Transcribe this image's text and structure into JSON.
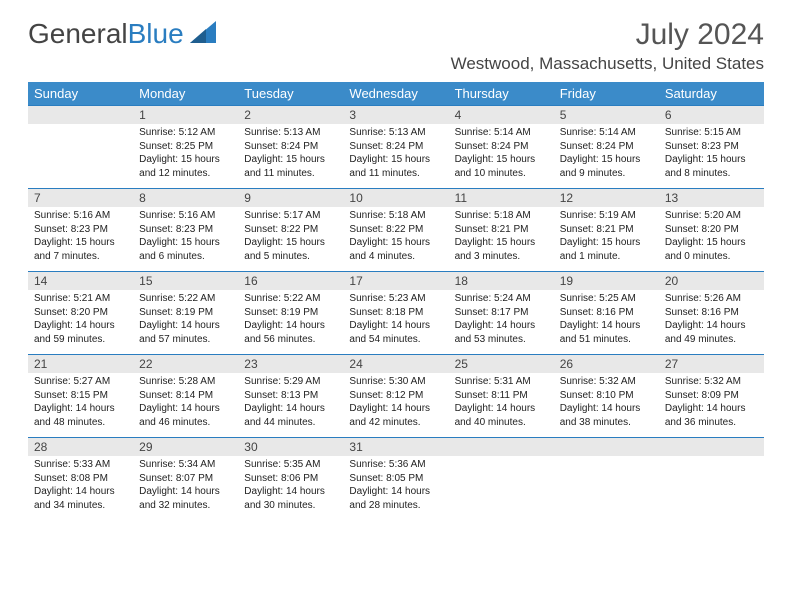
{
  "logo": {
    "text1": "General",
    "text2": "Blue"
  },
  "title": "July 2024",
  "location": "Westwood, Massachusetts, United States",
  "colors": {
    "header_bg": "#3b8bc9",
    "header_text": "#ffffff",
    "daynum_bg": "#e8e8e8",
    "border_top": "#2a7dc0",
    "body_text": "#222222",
    "page_bg": "#ffffff"
  },
  "dayNames": [
    "Sunday",
    "Monday",
    "Tuesday",
    "Wednesday",
    "Thursday",
    "Friday",
    "Saturday"
  ],
  "weeks": [
    {
      "nums": [
        "",
        "1",
        "2",
        "3",
        "4",
        "5",
        "6"
      ],
      "cells": [
        {
          "sunrise": "",
          "sunset": "",
          "daylight": ""
        },
        {
          "sunrise": "Sunrise: 5:12 AM",
          "sunset": "Sunset: 8:25 PM",
          "daylight": "Daylight: 15 hours and 12 minutes."
        },
        {
          "sunrise": "Sunrise: 5:13 AM",
          "sunset": "Sunset: 8:24 PM",
          "daylight": "Daylight: 15 hours and 11 minutes."
        },
        {
          "sunrise": "Sunrise: 5:13 AM",
          "sunset": "Sunset: 8:24 PM",
          "daylight": "Daylight: 15 hours and 11 minutes."
        },
        {
          "sunrise": "Sunrise: 5:14 AM",
          "sunset": "Sunset: 8:24 PM",
          "daylight": "Daylight: 15 hours and 10 minutes."
        },
        {
          "sunrise": "Sunrise: 5:14 AM",
          "sunset": "Sunset: 8:24 PM",
          "daylight": "Daylight: 15 hours and 9 minutes."
        },
        {
          "sunrise": "Sunrise: 5:15 AM",
          "sunset": "Sunset: 8:23 PM",
          "daylight": "Daylight: 15 hours and 8 minutes."
        }
      ]
    },
    {
      "nums": [
        "7",
        "8",
        "9",
        "10",
        "11",
        "12",
        "13"
      ],
      "cells": [
        {
          "sunrise": "Sunrise: 5:16 AM",
          "sunset": "Sunset: 8:23 PM",
          "daylight": "Daylight: 15 hours and 7 minutes."
        },
        {
          "sunrise": "Sunrise: 5:16 AM",
          "sunset": "Sunset: 8:23 PM",
          "daylight": "Daylight: 15 hours and 6 minutes."
        },
        {
          "sunrise": "Sunrise: 5:17 AM",
          "sunset": "Sunset: 8:22 PM",
          "daylight": "Daylight: 15 hours and 5 minutes."
        },
        {
          "sunrise": "Sunrise: 5:18 AM",
          "sunset": "Sunset: 8:22 PM",
          "daylight": "Daylight: 15 hours and 4 minutes."
        },
        {
          "sunrise": "Sunrise: 5:18 AM",
          "sunset": "Sunset: 8:21 PM",
          "daylight": "Daylight: 15 hours and 3 minutes."
        },
        {
          "sunrise": "Sunrise: 5:19 AM",
          "sunset": "Sunset: 8:21 PM",
          "daylight": "Daylight: 15 hours and 1 minute."
        },
        {
          "sunrise": "Sunrise: 5:20 AM",
          "sunset": "Sunset: 8:20 PM",
          "daylight": "Daylight: 15 hours and 0 minutes."
        }
      ]
    },
    {
      "nums": [
        "14",
        "15",
        "16",
        "17",
        "18",
        "19",
        "20"
      ],
      "cells": [
        {
          "sunrise": "Sunrise: 5:21 AM",
          "sunset": "Sunset: 8:20 PM",
          "daylight": "Daylight: 14 hours and 59 minutes."
        },
        {
          "sunrise": "Sunrise: 5:22 AM",
          "sunset": "Sunset: 8:19 PM",
          "daylight": "Daylight: 14 hours and 57 minutes."
        },
        {
          "sunrise": "Sunrise: 5:22 AM",
          "sunset": "Sunset: 8:19 PM",
          "daylight": "Daylight: 14 hours and 56 minutes."
        },
        {
          "sunrise": "Sunrise: 5:23 AM",
          "sunset": "Sunset: 8:18 PM",
          "daylight": "Daylight: 14 hours and 54 minutes."
        },
        {
          "sunrise": "Sunrise: 5:24 AM",
          "sunset": "Sunset: 8:17 PM",
          "daylight": "Daylight: 14 hours and 53 minutes."
        },
        {
          "sunrise": "Sunrise: 5:25 AM",
          "sunset": "Sunset: 8:16 PM",
          "daylight": "Daylight: 14 hours and 51 minutes."
        },
        {
          "sunrise": "Sunrise: 5:26 AM",
          "sunset": "Sunset: 8:16 PM",
          "daylight": "Daylight: 14 hours and 49 minutes."
        }
      ]
    },
    {
      "nums": [
        "21",
        "22",
        "23",
        "24",
        "25",
        "26",
        "27"
      ],
      "cells": [
        {
          "sunrise": "Sunrise: 5:27 AM",
          "sunset": "Sunset: 8:15 PM",
          "daylight": "Daylight: 14 hours and 48 minutes."
        },
        {
          "sunrise": "Sunrise: 5:28 AM",
          "sunset": "Sunset: 8:14 PM",
          "daylight": "Daylight: 14 hours and 46 minutes."
        },
        {
          "sunrise": "Sunrise: 5:29 AM",
          "sunset": "Sunset: 8:13 PM",
          "daylight": "Daylight: 14 hours and 44 minutes."
        },
        {
          "sunrise": "Sunrise: 5:30 AM",
          "sunset": "Sunset: 8:12 PM",
          "daylight": "Daylight: 14 hours and 42 minutes."
        },
        {
          "sunrise": "Sunrise: 5:31 AM",
          "sunset": "Sunset: 8:11 PM",
          "daylight": "Daylight: 14 hours and 40 minutes."
        },
        {
          "sunrise": "Sunrise: 5:32 AM",
          "sunset": "Sunset: 8:10 PM",
          "daylight": "Daylight: 14 hours and 38 minutes."
        },
        {
          "sunrise": "Sunrise: 5:32 AM",
          "sunset": "Sunset: 8:09 PM",
          "daylight": "Daylight: 14 hours and 36 minutes."
        }
      ]
    },
    {
      "nums": [
        "28",
        "29",
        "30",
        "31",
        "",
        "",
        ""
      ],
      "cells": [
        {
          "sunrise": "Sunrise: 5:33 AM",
          "sunset": "Sunset: 8:08 PM",
          "daylight": "Daylight: 14 hours and 34 minutes."
        },
        {
          "sunrise": "Sunrise: 5:34 AM",
          "sunset": "Sunset: 8:07 PM",
          "daylight": "Daylight: 14 hours and 32 minutes."
        },
        {
          "sunrise": "Sunrise: 5:35 AM",
          "sunset": "Sunset: 8:06 PM",
          "daylight": "Daylight: 14 hours and 30 minutes."
        },
        {
          "sunrise": "Sunrise: 5:36 AM",
          "sunset": "Sunset: 8:05 PM",
          "daylight": "Daylight: 14 hours and 28 minutes."
        },
        {
          "sunrise": "",
          "sunset": "",
          "daylight": ""
        },
        {
          "sunrise": "",
          "sunset": "",
          "daylight": ""
        },
        {
          "sunrise": "",
          "sunset": "",
          "daylight": ""
        }
      ]
    }
  ]
}
